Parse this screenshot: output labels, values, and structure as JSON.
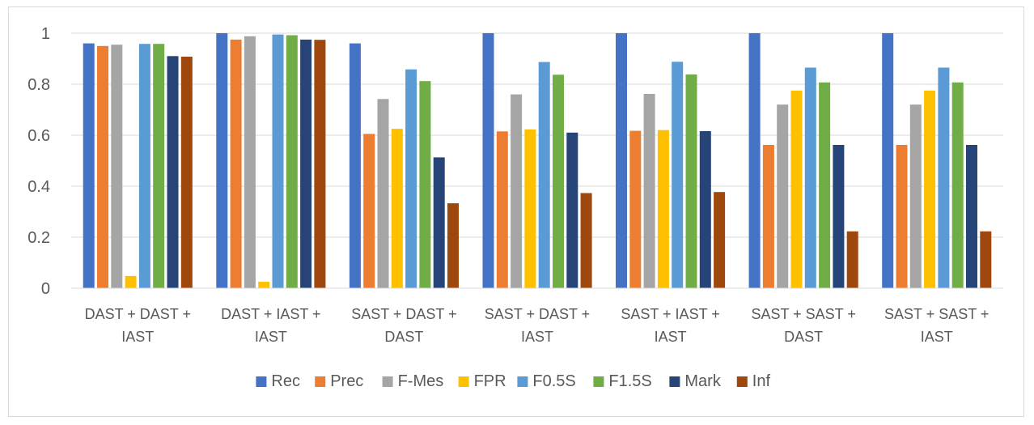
{
  "chart_data": {
    "type": "bar",
    "title": "",
    "xlabel": "",
    "ylabel": "",
    "ylim": [
      0,
      1
    ],
    "yticks": [
      "0",
      "0.2",
      "0.4",
      "0.6",
      "0.8",
      "1"
    ],
    "grid": true,
    "legend_position": "bottom",
    "categories": [
      [
        "DAST + DAST +",
        "IAST"
      ],
      [
        "DAST + IAST +",
        "IAST"
      ],
      [
        "SAST + DAST +",
        "DAST"
      ],
      [
        "SAST + DAST +",
        "IAST"
      ],
      [
        "SAST + IAST +",
        "IAST"
      ],
      [
        "SAST + SAST +",
        "DAST"
      ],
      [
        "SAST + SAST +",
        "IAST"
      ]
    ],
    "series": [
      {
        "name": "Rec",
        "color": "#4472c4",
        "values": [
          0.96,
          1.0,
          0.96,
          1.0,
          1.0,
          1.0,
          1.0
        ]
      },
      {
        "name": "Prec",
        "color": "#ed7d31",
        "values": [
          0.95,
          0.975,
          0.605,
          0.615,
          0.617,
          0.562,
          0.562
        ]
      },
      {
        "name": "F-Mes",
        "color": "#a5a5a5",
        "values": [
          0.955,
          0.988,
          0.742,
          0.76,
          0.762,
          0.72,
          0.72
        ]
      },
      {
        "name": "FPR",
        "color": "#ffc000",
        "values": [
          0.048,
          0.025,
          0.625,
          0.623,
          0.62,
          0.775,
          0.775
        ]
      },
      {
        "name": "F0.5S",
        "color": "#5b9bd5",
        "values": [
          0.958,
          0.995,
          0.858,
          0.887,
          0.888,
          0.865,
          0.865
        ]
      },
      {
        "name": "F1.5S",
        "color": "#70ad47",
        "values": [
          0.958,
          0.992,
          0.812,
          0.837,
          0.838,
          0.807,
          0.807
        ]
      },
      {
        "name": "Mark",
        "color": "#264478",
        "values": [
          0.91,
          0.975,
          0.513,
          0.61,
          0.616,
          0.562,
          0.562
        ]
      },
      {
        "name": "Inf",
        "color": "#9e480e",
        "values": [
          0.908,
          0.974,
          0.333,
          0.373,
          0.377,
          0.223,
          0.223
        ]
      }
    ]
  }
}
